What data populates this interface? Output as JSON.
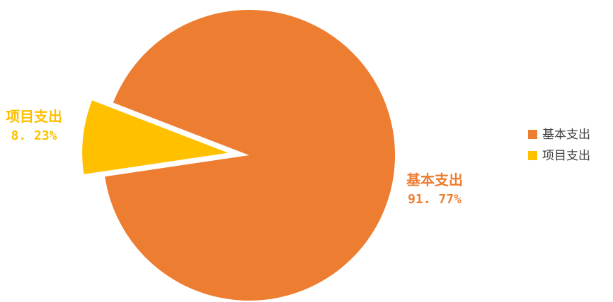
{
  "chart_data": {
    "type": "pie",
    "categories": [
      "基本支出",
      "项目支出"
    ],
    "values": [
      91.77,
      8.23
    ],
    "value_labels": [
      "91. 77%",
      "8. 23%"
    ],
    "colors": [
      "#ED7D31",
      "#FFC000"
    ],
    "exploded": [
      false,
      true
    ],
    "legend_placement": "right",
    "title": ""
  }
}
